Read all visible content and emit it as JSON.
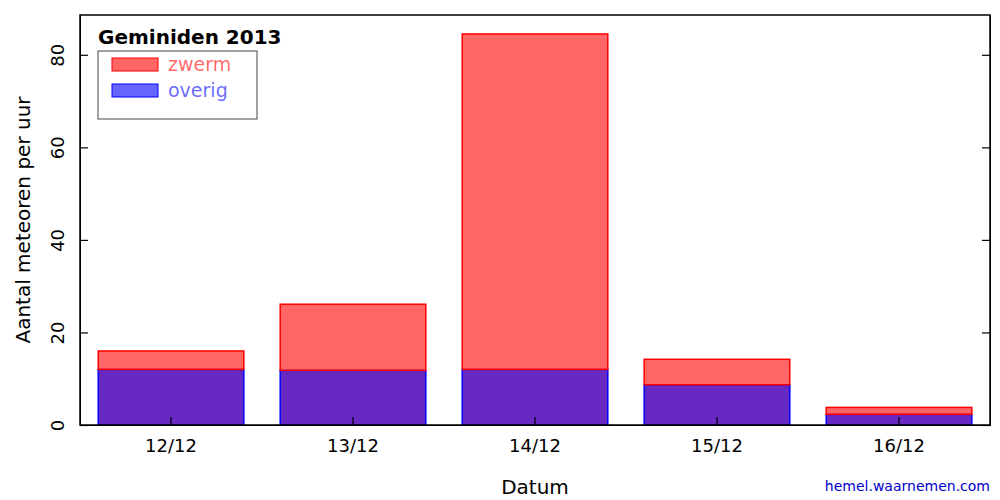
{
  "chart_data": {
    "type": "bar",
    "title": "Geminiden 2013",
    "x_label": "Datum",
    "y_label": "Aantal meteoren per uur",
    "categories": [
      "12/12",
      "13/12",
      "14/12",
      "15/12",
      "16/12"
    ],
    "series": [
      {
        "name": "zwerm",
        "color": "#ff0000",
        "values": [
          4,
          14.3,
          72.5,
          5.5,
          1.5
        ]
      },
      {
        "name": "overig",
        "color": "#0000ff",
        "values": [
          12,
          11.8,
          12,
          8.7,
          2.3
        ]
      }
    ],
    "stacked": true,
    "ylim": [
      0,
      88.6
    ],
    "yticks": [
      0,
      20,
      40,
      60,
      80
    ],
    "legend": "upper left",
    "annotations": [
      "hemel.waarnemen.com"
    ]
  }
}
